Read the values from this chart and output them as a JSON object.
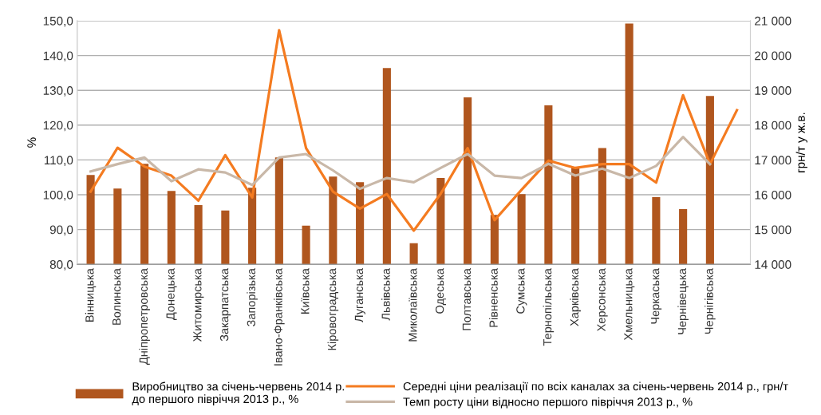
{
  "chart_data": {
    "type": "bar",
    "categories": [
      "Вінницька",
      "Волинська",
      "Дніпропетровська",
      "Донецька",
      "Житомирська",
      "Закарпатська",
      "Запорізька",
      "Івано-Франківська",
      "Київська",
      "Кіровоградська",
      "Луганська",
      "Львівська",
      "Миколаївська",
      "Одеська",
      "Полтавська",
      "Рівненська",
      "Сумська",
      "Тернопільська",
      "Харківська",
      "Херсонська",
      "Хмельницька",
      "Черкаська",
      "Чернівецька",
      "Чернігівська",
      null
    ],
    "series": [
      {
        "name": "Виробництво за січень-червень 2014 р.\nдо першого півріччя 2013 р., %",
        "color": "#b0561e",
        "values": [
          105.7,
          101.8,
          108.9,
          101.1,
          97.0,
          95.5,
          102.0,
          110.7,
          91.1,
          105.2,
          103.6,
          136.4,
          86.1,
          104.8,
          128.0,
          94.2,
          100.2,
          125.7,
          107.9,
          113.4,
          149.2,
          99.3,
          95.9,
          128.4,
          null
        ]
      },
      {
        "name": "Середні ціни реалізації по всіх каналах за січень-червень 2014 р., грн/т",
        "type": "line",
        "axis": "y2",
        "color": "#f47b20",
        "values": [
          16090,
          17350,
          16810,
          16550,
          15830,
          17140,
          15920,
          20730,
          17340,
          16090,
          15600,
          16020,
          14970,
          16030,
          17340,
          15270,
          16140,
          16980,
          16770,
          16880,
          16880,
          16350,
          18860,
          16880,
          18430
        ]
      },
      {
        "name": "Темп росту ціни відносно першого півріччя 2013 р., %",
        "type": "line",
        "color": "#c9b8a8",
        "values": [
          106.7,
          108.8,
          110.7,
          103.9,
          107.3,
          106.4,
          102.8,
          110.7,
          111.7,
          107.0,
          101.7,
          104.8,
          103.6,
          107.7,
          111.7,
          105.5,
          104.8,
          108.9,
          105.5,
          107.5,
          104.8,
          108.3,
          116.6,
          108.8,
          null
        ]
      }
    ],
    "ylabel": "%",
    "y2label": "грн/т у ж.в.",
    "ylim": [
      80,
      150
    ],
    "yticks": [
      {
        "value": 80,
        "label": "80,0"
      },
      {
        "value": 90,
        "label": "90,0"
      },
      {
        "value": 100,
        "label": "100,0"
      },
      {
        "value": 110,
        "label": "110,0"
      },
      {
        "value": 120,
        "label": "120,0"
      },
      {
        "value": 130,
        "label": "130,0"
      },
      {
        "value": 140,
        "label": "140,0"
      },
      {
        "value": 150,
        "label": "150,0"
      }
    ],
    "y2lim": [
      14000,
      21000
    ],
    "y2ticks": [
      {
        "value": 14000,
        "label": "14 000"
      },
      {
        "value": 15000,
        "label": "15 000"
      },
      {
        "value": 16000,
        "label": "16 000"
      },
      {
        "value": 17000,
        "label": "17 000"
      },
      {
        "value": 18000,
        "label": "18 000"
      },
      {
        "value": 19000,
        "label": "19 000"
      },
      {
        "value": 20000,
        "label": "20 000"
      },
      {
        "value": 21000,
        "label": "21 000"
      }
    ],
    "grid": "y",
    "legend": "bottom",
    "marker": "none",
    "line_style": "solid"
  }
}
